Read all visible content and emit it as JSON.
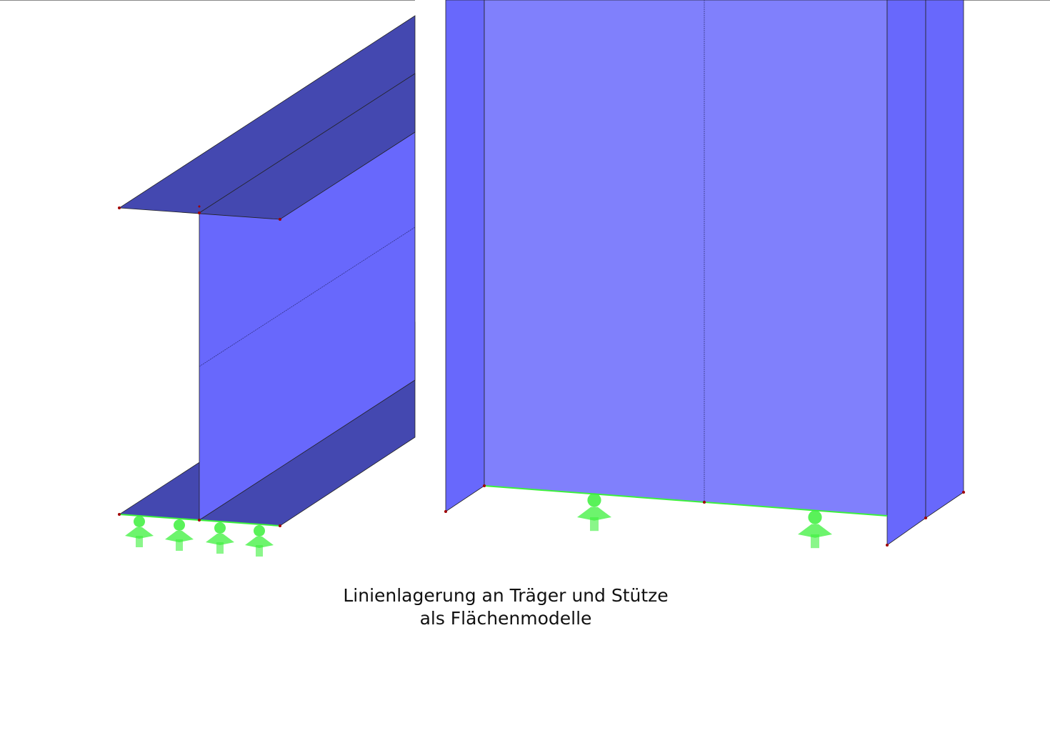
{
  "caption": {
    "line1": "Linienlagerung an Träger und Stütze",
    "line2": "als Flächenmodelle"
  },
  "colors": {
    "flange_dark": "#4448b0",
    "surface_blue": "#6868fc",
    "web_light": "#8080fc",
    "support_green": "#3cf03c",
    "node_red": "#a00000"
  },
  "icons": [
    "line-support-icon"
  ]
}
